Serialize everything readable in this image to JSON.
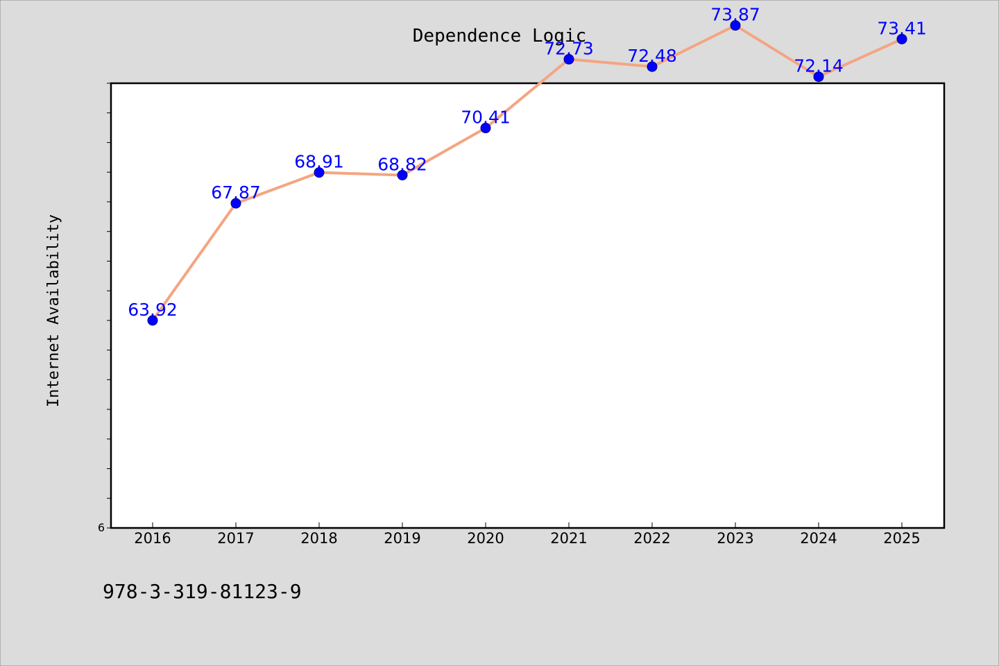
{
  "chart_data": {
    "type": "line",
    "title": "Dependence Logic",
    "xlabel": "",
    "ylabel": "Internet Availability",
    "categories": [
      "2016",
      "2017",
      "2018",
      "2019",
      "2020",
      "2021",
      "2022",
      "2023",
      "2024",
      "2025"
    ],
    "series": [
      {
        "values": [
          63.92,
          67.87,
          68.91,
          68.82,
          70.41,
          72.73,
          72.48,
          73.87,
          72.14,
          73.41
        ]
      }
    ],
    "ylim": [
      56.92,
      71.92
    ],
    "y_tick_labels": [
      "6"
    ],
    "grid": false,
    "legend": "none",
    "colors": {
      "line": "#f4a582",
      "marker": "#0000ff",
      "marker_edge": "#00008b",
      "data_label": "#0000ff",
      "plot_background": "#ffffff",
      "figure_background": "#dcdcdc"
    }
  },
  "footer": {
    "text": "978-3-319-81123-9"
  }
}
